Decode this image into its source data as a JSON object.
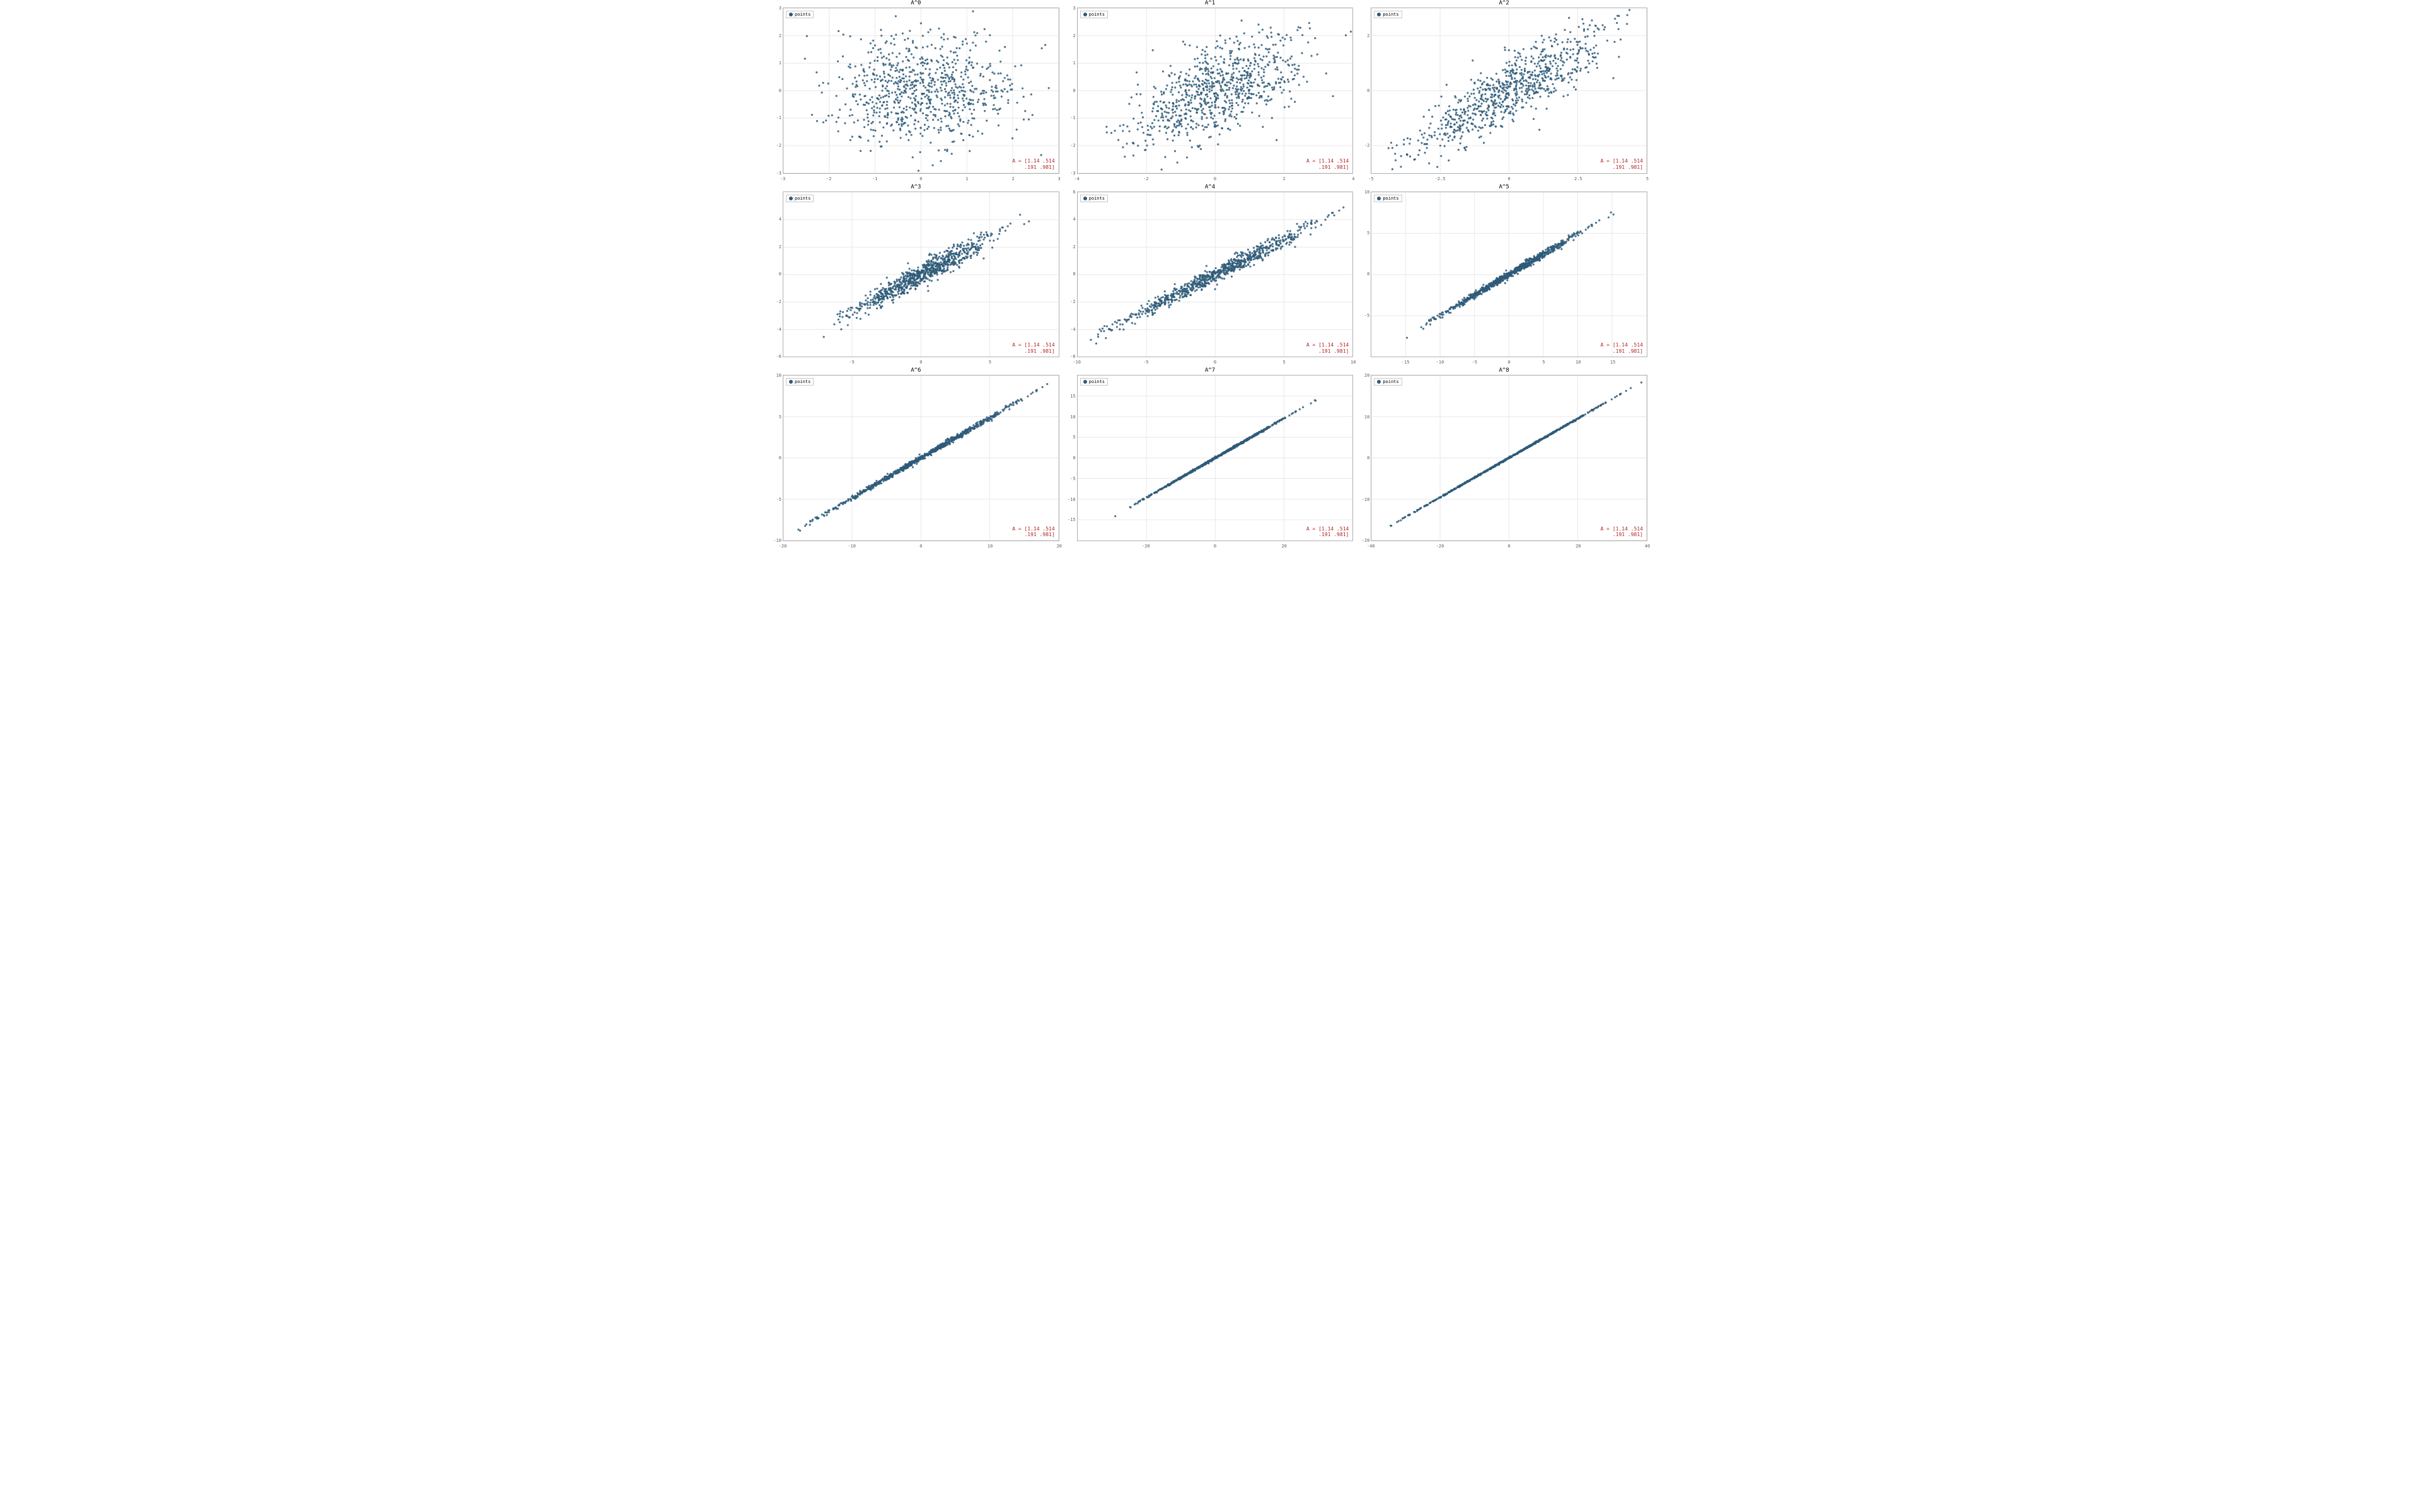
{
  "figure": {
    "rows": 3,
    "cols": 3,
    "background_color": "#ffffff",
    "grid_color": "#e8e8e8",
    "axis_color": "#b0b0b0",
    "tick_color": "#606060",
    "point_color": "#2e5a78",
    "point_radius": 1.6,
    "point_opacity": 0.85,
    "title_fontsize": 9,
    "tick_fontsize": 7,
    "legend_fontsize": 7,
    "annotation_fontsize": 8,
    "annotation_color": "#b22222",
    "font_family": "DejaVu Sans Mono, Consolas, monospace"
  },
  "matrix_A": [
    [
      1.14,
      0.514
    ],
    [
      0.191,
      0.981
    ]
  ],
  "annotation_text": "A = [1.14 .514\n     .191 .981]",
  "legend_label": "points",
  "n_points_per_panel": 800,
  "random_seed_note": "standard bivariate normal (mean 0, I) base cloud, then transformed by A^k",
  "panels": [
    {
      "title": "A^0",
      "power": 0,
      "xlim": [
        -3,
        3
      ],
      "xticks": [
        -3,
        -2,
        -1,
        0,
        1,
        2,
        3
      ],
      "ylim": [
        -3,
        3
      ],
      "yticks": [
        -3,
        -2,
        -1,
        0,
        1,
        2,
        3
      ]
    },
    {
      "title": "A^1",
      "power": 1,
      "xlim": [
        -4,
        4
      ],
      "xticks": [
        -4,
        -2,
        0,
        2,
        4
      ],
      "ylim": [
        -3,
        3
      ],
      "yticks": [
        -3,
        -2,
        -1,
        0,
        1,
        2,
        3
      ]
    },
    {
      "title": "A^2",
      "power": 2,
      "xlim": [
        -5,
        5
      ],
      "xticks": [
        -5.0,
        -2.5,
        0.0,
        2.5,
        5.0
      ],
      "ylim": [
        -3,
        3
      ],
      "yticks": [
        -2,
        0,
        2
      ]
    },
    {
      "title": "A^3",
      "power": 3,
      "xlim": [
        -10,
        10
      ],
      "xticks": [
        -5,
        0,
        5
      ],
      "ylim": [
        -6,
        6
      ],
      "yticks": [
        -6,
        -4,
        -2,
        0,
        2,
        4
      ]
    },
    {
      "title": "A^4",
      "power": 4,
      "xlim": [
        -10,
        10
      ],
      "xticks": [
        -10,
        -5,
        0,
        5,
        10
      ],
      "ylim": [
        -6,
        6
      ],
      "yticks": [
        -6,
        -4,
        -2,
        0,
        2,
        4,
        6
      ]
    },
    {
      "title": "A^5",
      "power": 5,
      "xlim": [
        -20,
        20
      ],
      "xticks": [
        -15,
        -10,
        -5,
        0,
        5,
        10,
        15
      ],
      "ylim": [
        -10,
        10
      ],
      "yticks": [
        -5,
        0,
        5,
        10
      ]
    },
    {
      "title": "A^6",
      "power": 6,
      "xlim": [
        -20,
        20
      ],
      "xticks": [
        -20,
        -10,
        0,
        10,
        20
      ],
      "ylim": [
        -10,
        10
      ],
      "yticks": [
        -10,
        -5,
        0,
        5,
        10
      ]
    },
    {
      "title": "A^7",
      "power": 7,
      "xlim": [
        -40,
        40
      ],
      "xticks": [
        -20,
        0,
        20
      ],
      "ylim": [
        -20,
        20
      ],
      "yticks": [
        -15,
        -10,
        -5,
        0,
        5,
        10,
        15
      ]
    },
    {
      "title": "A^8",
      "power": 8,
      "xlim": [
        -40,
        40
      ],
      "xticks": [
        -40,
        -20,
        0,
        20,
        40
      ],
      "ylim": [
        -20,
        20
      ],
      "yticks": [
        -20,
        -10,
        0,
        10,
        20
      ]
    }
  ]
}
